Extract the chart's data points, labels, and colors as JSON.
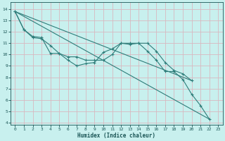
{
  "xlabel": "Humidex (Indice chaleur)",
  "bg_color": "#c8f0ee",
  "line_color": "#2e7d7a",
  "grid_color": "#d8b8c0",
  "xlim": [
    -0.5,
    23.5
  ],
  "ylim": [
    3.8,
    14.6
  ],
  "yticks": [
    4,
    5,
    6,
    7,
    8,
    9,
    10,
    11,
    12,
    13,
    14
  ],
  "xticks": [
    0,
    1,
    2,
    3,
    4,
    5,
    6,
    7,
    8,
    9,
    10,
    11,
    12,
    13,
    14,
    15,
    16,
    17,
    18,
    19,
    20,
    21,
    22,
    23
  ],
  "lines": [
    {
      "x": [
        0,
        1,
        2,
        3,
        4,
        5,
        6,
        7,
        8,
        9,
        10,
        11,
        12,
        13,
        14,
        15,
        16,
        17,
        18,
        19,
        20,
        21,
        22
      ],
      "y": [
        13.8,
        12.2,
        11.6,
        11.5,
        10.1,
        10.1,
        9.5,
        9.0,
        9.2,
        9.3,
        10.2,
        10.5,
        11.0,
        10.9,
        11.0,
        10.3,
        9.5,
        8.5,
        8.5,
        7.8,
        6.5,
        5.5,
        4.3
      ],
      "has_markers": true
    },
    {
      "x": [
        0,
        1,
        2,
        3,
        4,
        5,
        6,
        7,
        8,
        9,
        10,
        11,
        12,
        13,
        14,
        15,
        16,
        17,
        18,
        19,
        20
      ],
      "y": [
        13.8,
        12.2,
        11.5,
        11.4,
        10.8,
        10.1,
        9.8,
        9.8,
        9.5,
        9.5,
        9.5,
        10.0,
        11.0,
        11.0,
        11.0,
        11.0,
        10.3,
        9.3,
        8.6,
        8.3,
        7.7
      ],
      "has_markers": true
    },
    {
      "x": [
        0,
        22
      ],
      "y": [
        13.8,
        4.3
      ],
      "has_markers": false
    },
    {
      "x": [
        0,
        20
      ],
      "y": [
        13.8,
        7.7
      ],
      "has_markers": false
    }
  ]
}
